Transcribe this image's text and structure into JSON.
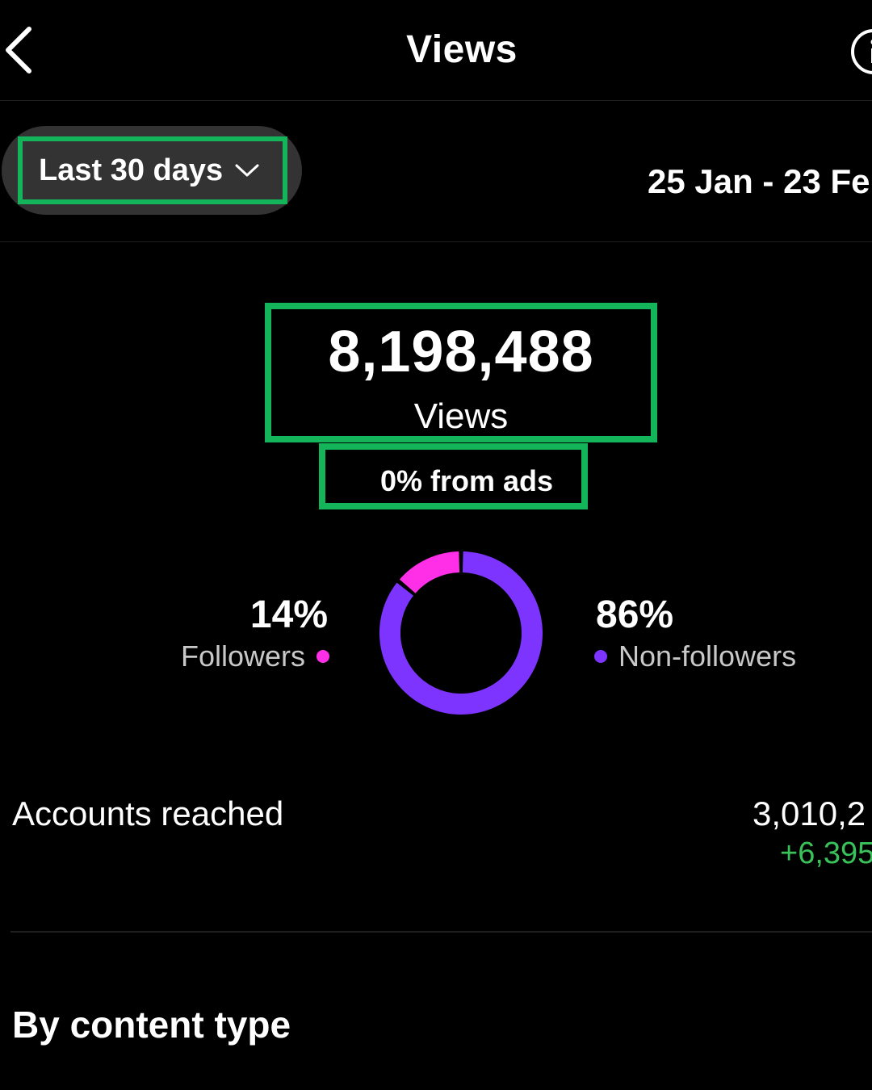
{
  "header": {
    "title": "Views"
  },
  "range": {
    "selected": "Last 30 days",
    "dates": "25 Jan - 23 Fe"
  },
  "summary": {
    "total": "8,198,488",
    "label": "Views",
    "ads": "0% from ads"
  },
  "audience": {
    "followers": {
      "pct": "14%",
      "label": "Followers",
      "fraction": 0.14,
      "color": "#ff2fe8"
    },
    "non_followers": {
      "pct": "86%",
      "label": "Non-followers",
      "fraction": 0.86,
      "color": "#7d34ff"
    }
  },
  "accounts_reached": {
    "label": "Accounts reached",
    "value": "3,010,2",
    "change": "+6,395"
  },
  "section": {
    "title": "By content type"
  },
  "colors": {
    "highlight": "#13b45a",
    "positive": "#3ac25a",
    "background": "#000000"
  },
  "icons": {
    "back": "chevron-left-icon",
    "info": "info-circle-icon",
    "dropdown": "chevron-down-icon"
  }
}
